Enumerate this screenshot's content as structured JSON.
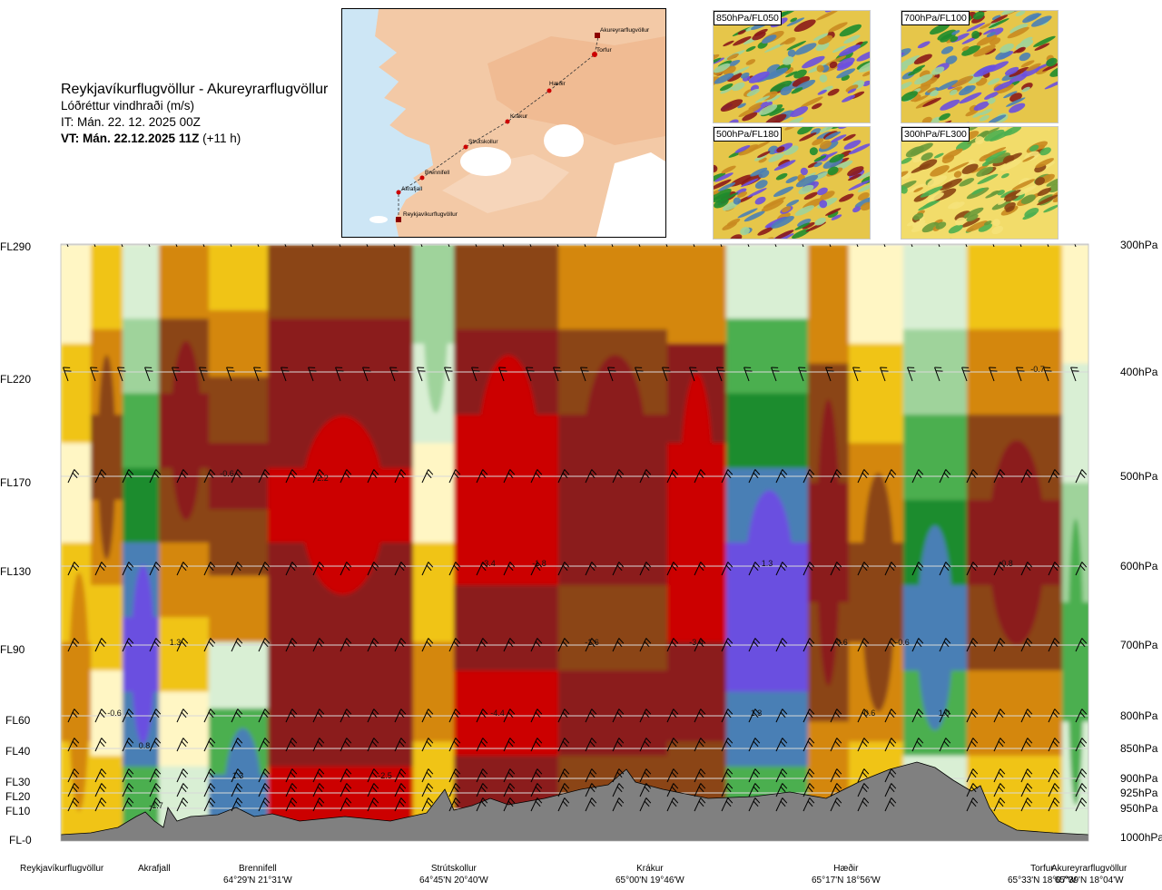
{
  "header": {
    "route": "Reykjavíkurflugvöllur - Akureyrarflugvöllur",
    "variable": "Lóðréttur vindhraði (m/s)",
    "issue_time": "IT: Mán. 22. 12. 2025 00Z",
    "valid_time_bold": "VT: Mán. 22.12.2025 11Z",
    "valid_time_offset": " (+11 h)"
  },
  "map": {
    "points": [
      {
        "name": "Akureyrarflugvöllur",
        "kind": "airport"
      },
      {
        "name": "Torfur",
        "kind": "waypoint"
      },
      {
        "name": "Hæðir",
        "kind": "waypoint"
      },
      {
        "name": "Krákur",
        "kind": "waypoint"
      },
      {
        "name": "Strútskollur",
        "kind": "waypoint"
      },
      {
        "name": "Brennifell",
        "kind": "waypoint"
      },
      {
        "name": "Akrafjall",
        "kind": "waypoint"
      },
      {
        "name": "Reykjavíkurflugvöllur",
        "kind": "airport"
      }
    ]
  },
  "insets": [
    {
      "label": "850hPa/FL050"
    },
    {
      "label": "700hPa/FL100"
    },
    {
      "label": "500hPa/FL180"
    },
    {
      "label": "300hPa/FL300"
    }
  ],
  "flight_levels": [
    "FL290",
    "FL220",
    "FL170",
    "FL130",
    "FL90",
    "FL60",
    "FL40",
    "FL30",
    "FL20",
    "FL10",
    "FL-0"
  ],
  "pressure_levels": [
    "300hPa",
    "400hPa",
    "500hPa",
    "600hPa",
    "700hPa",
    "800hPa",
    "850hPa",
    "900hPa",
    "925hPa",
    "950hPa",
    "1000hPa"
  ],
  "stations": [
    {
      "name": "Reykjavíkurflugvöllur",
      "coords": ""
    },
    {
      "name": "Akrafjall",
      "coords": ""
    },
    {
      "name": "Brennifell",
      "coords": "64°29'N 21°31'W"
    },
    {
      "name": "Strútskollur",
      "coords": "64°45'N 20°40'W"
    },
    {
      "name": "Krákur",
      "coords": "65°00'N 19°46'W"
    },
    {
      "name": "Hæðir",
      "coords": "65°17'N 18°56'W"
    },
    {
      "name": "Torfur",
      "coords": "65°33'N 18°07'W"
    },
    {
      "name": "Akureyrarflugvöllur",
      "coords": "65°39'N 18°04'W"
    }
  ],
  "chart_data": {
    "type": "heatmap",
    "title": "Lóðréttur vindhraði (m/s)",
    "x": "distance along route",
    "y_levels_hPa": [
      300,
      400,
      500,
      600,
      700,
      800,
      850,
      900,
      925,
      950,
      1000
    ],
    "annotations": [
      {
        "text": "-0.6",
        "level_hPa": 800,
        "near": "Reykjavíkurflugvöllur"
      },
      {
        "text": "0.8",
        "level_hPa": 850,
        "near": "Akrafjall"
      },
      {
        "text": "1.3",
        "level_hPa": 700,
        "near": "Akrafjall"
      },
      {
        "text": "-1.7",
        "level_hPa": 950,
        "near": "Akrafjall"
      },
      {
        "text": "1.3",
        "level_hPa": 900,
        "near": "Brennifell"
      },
      {
        "text": "-0.6",
        "level_hPa": 500,
        "near": "Brennifell"
      },
      {
        "text": "-2.2",
        "level_hPa": 500,
        "near": "Brennifell"
      },
      {
        "text": "-2.5",
        "level_hPa": 900,
        "near": "Brennifell"
      },
      {
        "text": "-3.4",
        "level_hPa": 600,
        "near": "Strútskollur"
      },
      {
        "text": "-1.8",
        "level_hPa": 600,
        "near": "Strútskollur"
      },
      {
        "text": "-4.4",
        "level_hPa": 800,
        "near": "Strútskollur"
      },
      {
        "text": "-1.6",
        "level_hPa": 700,
        "near": "Krákur"
      },
      {
        "text": "-3.4",
        "level_hPa": 700,
        "near": "Krákur"
      },
      {
        "text": "1.3",
        "level_hPa": 600,
        "near": "Hæðir"
      },
      {
        "text": "1.3",
        "level_hPa": 800,
        "near": "Hæðir"
      },
      {
        "text": "-0.6",
        "level_hPa": 700,
        "near": "Hæðir"
      },
      {
        "text": "-0.6",
        "level_hPa": 700,
        "near": "Hæðir"
      },
      {
        "text": "0.6",
        "level_hPa": 800,
        "near": "Hæðir"
      },
      {
        "text": "1.0",
        "level_hPa": 800,
        "near": "Torfur"
      },
      {
        "text": "-0.8",
        "level_hPa": 600,
        "near": "Torfur"
      },
      {
        "text": "-0.7",
        "level_hPa": 400,
        "near": "Torfur"
      }
    ],
    "colors": {
      "strong_down": "#cc0000",
      "down": "#8b1a1a",
      "weak_down": "#8b4513",
      "slight_down": "#d4870f",
      "near_zero_down": "#f0c419",
      "near_zero": "#fff6c4",
      "near_zero_up": "#d9efd4",
      "slight_up": "#9fd39b",
      "weak_up": "#4caf50",
      "up": "#1e8c2e",
      "strong_up": "#4a7fb5",
      "very_strong_up": "#6a4fe0",
      "terrain": "#808080"
    }
  }
}
